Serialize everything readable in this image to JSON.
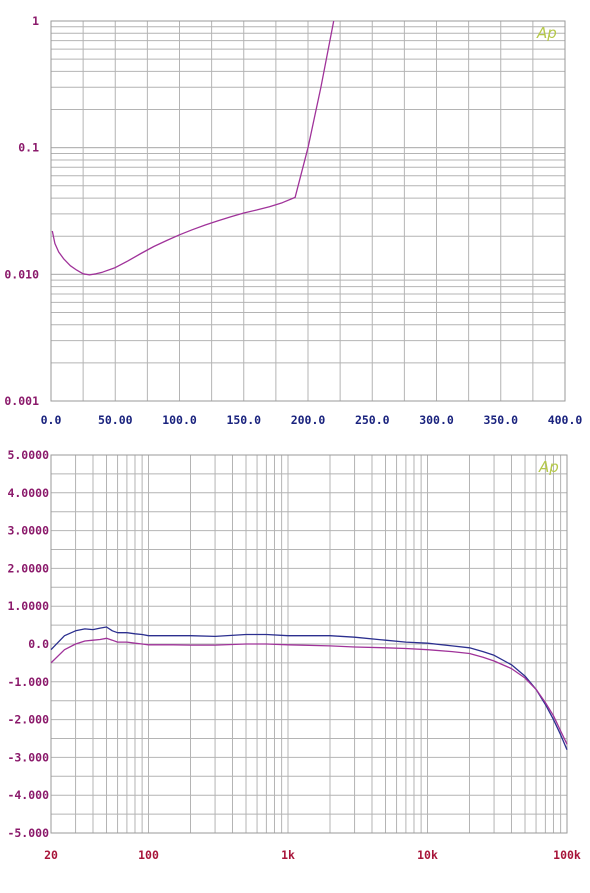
{
  "chart_data": [
    {
      "type": "line",
      "title": "",
      "xlabel": "",
      "ylabel": "",
      "x_scale": "linear",
      "y_scale": "log",
      "xlim": [
        0,
        400
      ],
      "ylim": [
        0.001,
        1
      ],
      "grid": true,
      "logo": "Ap",
      "logo_color": "#b5c84a",
      "x_tick_labels": [
        "0.0",
        "50.00",
        "100.0",
        "150.0",
        "200.0",
        "250.0",
        "300.0",
        "350.0",
        "400.0"
      ],
      "x_tick_values": [
        0,
        50,
        100,
        150,
        200,
        250,
        300,
        350,
        400
      ],
      "x_tick_color": "#1a237e",
      "y_tick_labels": [
        "1",
        "0.1",
        "0.010",
        "0.001"
      ],
      "y_tick_values": [
        1,
        0.1,
        0.01,
        0.001
      ],
      "y_tick_color": "#8b1a6b",
      "series": [
        {
          "color": "#a0339a",
          "x": [
            1,
            3,
            6,
            10,
            15,
            20,
            25,
            30,
            35,
            40,
            50,
            60,
            70,
            80,
            90,
            100,
            110,
            120,
            130,
            140,
            150,
            160,
            170,
            180,
            190,
            200,
            210,
            220
          ],
          "y": [
            0.022,
            0.0175,
            0.015,
            0.0132,
            0.0117,
            0.0108,
            0.0101,
            0.0099,
            0.0101,
            0.0104,
            0.0113,
            0.0128,
            0.0146,
            0.0166,
            0.0185,
            0.0205,
            0.0225,
            0.0245,
            0.0265,
            0.0285,
            0.0305,
            0.0322,
            0.0342,
            0.0368,
            0.0405,
            0.1,
            0.3,
            1.0
          ]
        }
      ]
    },
    {
      "type": "line",
      "title": "",
      "xlabel": "",
      "ylabel": "",
      "x_scale": "log",
      "y_scale": "linear",
      "xlim": [
        20,
        100000
      ],
      "ylim": [
        -5,
        5
      ],
      "grid": true,
      "logo": "Ap",
      "logo_color": "#b5c84a",
      "x_tick_labels": [
        "20",
        "100",
        "1k",
        "10k",
        "100k"
      ],
      "x_tick_values": [
        20,
        100,
        1000,
        10000,
        100000
      ],
      "x_tick_color": "#a8153a",
      "y_tick_labels": [
        "5.0000",
        "4.0000",
        "3.0000",
        "2.0000",
        "1.0000",
        "0.0",
        "-1.000",
        "-2.000",
        "-3.000",
        "-4.000",
        "-5.000"
      ],
      "y_tick_values": [
        5,
        4,
        3,
        2,
        1,
        0,
        -1,
        -2,
        -3,
        -4,
        -5
      ],
      "y_tick_color": "#8b1a6b",
      "series": [
        {
          "color": "#2b2f8f",
          "x": [
            20,
            25,
            30,
            35,
            40,
            45,
            50,
            55,
            60,
            70,
            80,
            90,
            100,
            150,
            200,
            300,
            500,
            700,
            1000,
            2000,
            3000,
            5000,
            7000,
            10000,
            15000,
            20000,
            25000,
            30000,
            40000,
            50000,
            60000,
            70000,
            80000,
            90000,
            100000
          ],
          "y": [
            -0.15,
            0.22,
            0.35,
            0.4,
            0.38,
            0.42,
            0.45,
            0.35,
            0.3,
            0.3,
            0.27,
            0.25,
            0.22,
            0.22,
            0.22,
            0.2,
            0.25,
            0.25,
            0.22,
            0.22,
            0.18,
            0.1,
            0.05,
            0.02,
            -0.05,
            -0.1,
            -0.2,
            -0.3,
            -0.55,
            -0.85,
            -1.2,
            -1.6,
            -2.0,
            -2.4,
            -2.8
          ]
        },
        {
          "color": "#a0339a",
          "x": [
            20,
            25,
            30,
            35,
            40,
            45,
            50,
            55,
            60,
            70,
            80,
            90,
            100,
            150,
            200,
            300,
            500,
            700,
            1000,
            2000,
            3000,
            5000,
            7000,
            10000,
            15000,
            20000,
            25000,
            30000,
            40000,
            50000,
            60000,
            70000,
            80000,
            90000,
            100000
          ],
          "y": [
            -0.5,
            -0.15,
            0.0,
            0.08,
            0.1,
            0.12,
            0.15,
            0.1,
            0.05,
            0.05,
            0.02,
            0.0,
            -0.02,
            -0.02,
            -0.03,
            -0.03,
            0.0,
            0.0,
            -0.02,
            -0.05,
            -0.08,
            -0.1,
            -0.12,
            -0.15,
            -0.2,
            -0.25,
            -0.35,
            -0.45,
            -0.65,
            -0.9,
            -1.2,
            -1.55,
            -1.9,
            -2.3,
            -2.65
          ]
        }
      ]
    }
  ]
}
